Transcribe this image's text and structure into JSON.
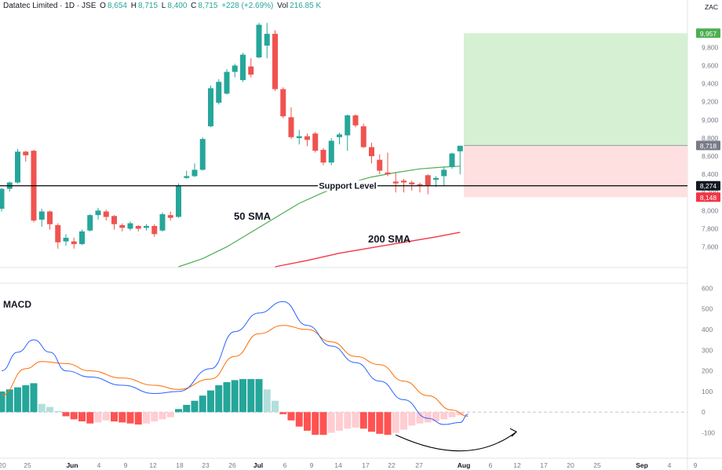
{
  "header": {
    "symbol": "Datatec Limited · 1D · JSE",
    "open_label": "O",
    "open": "8,654",
    "high_label": "H",
    "high": "8,715",
    "low_label": "L",
    "low": "8,400",
    "close_label": "C",
    "close": "8,715",
    "change": "+228 (+2.69%)",
    "vol_label": "Vol",
    "vol": "216.85 K"
  },
  "currency": "ZAC",
  "colors": {
    "up": "#26a69a",
    "down": "#ef5350",
    "sma50": "#4caf50",
    "sma200": "#f23645",
    "macd": "#2962ff",
    "signal": "#ff6d00",
    "hist_up_strong": "#26a69a",
    "hist_up_weak": "#b2dfdb",
    "hist_down_strong": "#ff5252",
    "hist_down_weak": "#ffcdd2",
    "target_zone": "#d6f0d4",
    "stop_zone": "#fde0df",
    "support": "#000000"
  },
  "price_axis": {
    "ticks": [
      "9,800",
      "9,600",
      "9,400",
      "9,200",
      "9,000",
      "8,800",
      "8,600",
      "8,400",
      "8,200",
      "8,000",
      "7,800",
      "7,600"
    ],
    "tags": [
      {
        "label": "9,957",
        "value": 9957,
        "color": "#4caf50"
      },
      {
        "label": "8,718",
        "value": 8718,
        "color": "#787b86"
      },
      {
        "label": "8,274",
        "value": 8274,
        "color": "#131722"
      },
      {
        "label": "8,148",
        "value": 8148,
        "color": "#f23645"
      }
    ]
  },
  "macd_axis": {
    "ticks": [
      "600",
      "500",
      "400",
      "300",
      "200",
      "100",
      "0",
      "-100"
    ]
  },
  "time_axis": {
    "labels": [
      "20",
      "25",
      "Jun",
      "4",
      "9",
      "12",
      "18",
      "23",
      "26",
      "Jul",
      "6",
      "9",
      "14",
      "17",
      "22",
      "27",
      "Aug",
      "6",
      "12",
      "17",
      "20",
      "25",
      "Sep",
      "4",
      "9"
    ]
  },
  "annotations": {
    "support": "Support Level",
    "sma50": "50 SMA",
    "sma200": "200 SMA",
    "macd": "MACD"
  },
  "levels": {
    "support": 8274,
    "target": 9957,
    "entry": 8718,
    "stop": 8148
  },
  "chart_data": {
    "type": "candlestick",
    "title": "Datatec Limited · 1D · JSE",
    "ylim": [
      7380,
      10150
    ],
    "candles": [
      {
        "o": 8020,
        "h": 8250,
        "l": 7990,
        "c": 8240
      },
      {
        "o": 8240,
        "h": 8320,
        "l": 8210,
        "c": 8310
      },
      {
        "o": 8310,
        "h": 8680,
        "l": 8300,
        "c": 8650
      },
      {
        "o": 8650,
        "h": 8660,
        "l": 8540,
        "c": 8610
      },
      {
        "o": 8660,
        "h": 8670,
        "l": 7870,
        "c": 7890
      },
      {
        "o": 7900,
        "h": 8020,
        "l": 7820,
        "c": 7990
      },
      {
        "o": 7990,
        "h": 8000,
        "l": 7790,
        "c": 7850
      },
      {
        "o": 7840,
        "h": 7860,
        "l": 7580,
        "c": 7650
      },
      {
        "o": 7660,
        "h": 7740,
        "l": 7610,
        "c": 7700
      },
      {
        "o": 7660,
        "h": 7700,
        "l": 7580,
        "c": 7630
      },
      {
        "o": 7630,
        "h": 7790,
        "l": 7620,
        "c": 7770
      },
      {
        "o": 7780,
        "h": 7960,
        "l": 7770,
        "c": 7950
      },
      {
        "o": 7950,
        "h": 8030,
        "l": 7900,
        "c": 8000
      },
      {
        "o": 7990,
        "h": 8010,
        "l": 7890,
        "c": 7930
      },
      {
        "o": 7940,
        "h": 7950,
        "l": 7790,
        "c": 7850
      },
      {
        "o": 7840,
        "h": 7860,
        "l": 7770,
        "c": 7810
      },
      {
        "o": 7800,
        "h": 7880,
        "l": 7780,
        "c": 7860
      },
      {
        "o": 7830,
        "h": 7840,
        "l": 7770,
        "c": 7800
      },
      {
        "o": 7810,
        "h": 7850,
        "l": 7780,
        "c": 7830
      },
      {
        "o": 7830,
        "h": 7850,
        "l": 7710,
        "c": 7740
      },
      {
        "o": 7780,
        "h": 7980,
        "l": 7770,
        "c": 7960
      },
      {
        "o": 7950,
        "h": 7990,
        "l": 7890,
        "c": 7920
      },
      {
        "o": 7930,
        "h": 8300,
        "l": 7920,
        "c": 8270
      },
      {
        "o": 8360,
        "h": 8440,
        "l": 8350,
        "c": 8380
      },
      {
        "o": 8380,
        "h": 8520,
        "l": 8370,
        "c": 8450
      },
      {
        "o": 8450,
        "h": 8810,
        "l": 8440,
        "c": 8790
      },
      {
        "o": 8930,
        "h": 9380,
        "l": 8920,
        "c": 9350
      },
      {
        "o": 9190,
        "h": 9450,
        "l": 9170,
        "c": 9420
      },
      {
        "o": 9290,
        "h": 9560,
        "l": 9280,
        "c": 9530
      },
      {
        "o": 9530,
        "h": 9620,
        "l": 9470,
        "c": 9600
      },
      {
        "o": 9440,
        "h": 9740,
        "l": 9420,
        "c": 9720
      },
      {
        "o": 9590,
        "h": 9680,
        "l": 9470,
        "c": 9500
      },
      {
        "o": 9690,
        "h": 10070,
        "l": 9680,
        "c": 10050
      },
      {
        "o": 9820,
        "h": 10070,
        "l": 9680,
        "c": 9950
      },
      {
        "o": 9950,
        "h": 9990,
        "l": 9320,
        "c": 9340
      },
      {
        "o": 9340,
        "h": 9360,
        "l": 9020,
        "c": 9040
      },
      {
        "o": 9030,
        "h": 9140,
        "l": 8790,
        "c": 8810
      },
      {
        "o": 8800,
        "h": 8890,
        "l": 8730,
        "c": 8820
      },
      {
        "o": 8820,
        "h": 8850,
        "l": 8710,
        "c": 8780
      },
      {
        "o": 8850,
        "h": 8870,
        "l": 8640,
        "c": 8660
      },
      {
        "o": 8670,
        "h": 8690,
        "l": 8500,
        "c": 8530
      },
      {
        "o": 8530,
        "h": 8800,
        "l": 8500,
        "c": 8770
      },
      {
        "o": 8810,
        "h": 8860,
        "l": 8730,
        "c": 8840
      },
      {
        "o": 8830,
        "h": 9060,
        "l": 8660,
        "c": 9050
      },
      {
        "o": 9050,
        "h": 9060,
        "l": 8920,
        "c": 8940
      },
      {
        "o": 8930,
        "h": 8960,
        "l": 8690,
        "c": 8700
      },
      {
        "o": 8700,
        "h": 8750,
        "l": 8520,
        "c": 8600
      },
      {
        "o": 8560,
        "h": 8620,
        "l": 8400,
        "c": 8440
      },
      {
        "o": 8420,
        "h": 8640,
        "l": 8380,
        "c": 8400
      },
      {
        "o": 8320,
        "h": 8420,
        "l": 8200,
        "c": 8300
      },
      {
        "o": 8330,
        "h": 8350,
        "l": 8200,
        "c": 8310
      },
      {
        "o": 8310,
        "h": 8330,
        "l": 8220,
        "c": 8290
      },
      {
        "o": 8290,
        "h": 8310,
        "l": 8200,
        "c": 8280
      },
      {
        "o": 8390,
        "h": 8400,
        "l": 8180,
        "c": 8280
      },
      {
        "o": 8340,
        "h": 8380,
        "l": 8260,
        "c": 8360
      },
      {
        "o": 8380,
        "h": 8480,
        "l": 8270,
        "c": 8450
      },
      {
        "o": 8480,
        "h": 8640,
        "l": 8460,
        "c": 8630
      },
      {
        "o": 8654,
        "h": 8715,
        "l": 8400,
        "c": 8715
      }
    ],
    "sma50": [
      {
        "x": 22,
        "y": 7380
      },
      {
        "x": 25,
        "y": 7470
      },
      {
        "x": 28,
        "y": 7600
      },
      {
        "x": 31,
        "y": 7760
      },
      {
        "x": 34,
        "y": 7920
      },
      {
        "x": 37,
        "y": 8080
      },
      {
        "x": 40,
        "y": 8200
      },
      {
        "x": 43,
        "y": 8300
      },
      {
        "x": 46,
        "y": 8370
      },
      {
        "x": 49,
        "y": 8420
      },
      {
        "x": 52,
        "y": 8460
      },
      {
        "x": 55,
        "y": 8480
      },
      {
        "x": 57,
        "y": 8490
      }
    ],
    "sma200": [
      {
        "x": 34,
        "y": 7380
      },
      {
        "x": 38,
        "y": 7450
      },
      {
        "x": 42,
        "y": 7530
      },
      {
        "x": 46,
        "y": 7590
      },
      {
        "x": 50,
        "y": 7650
      },
      {
        "x": 54,
        "y": 7710
      },
      {
        "x": 57,
        "y": 7760
      }
    ],
    "macd_ylim": [
      -170,
      620
    ],
    "macd": [
      {
        "x": 0,
        "y": 200
      },
      {
        "x": 2,
        "y": 290
      },
      {
        "x": 4,
        "y": 350
      },
      {
        "x": 6,
        "y": 290
      },
      {
        "x": 8,
        "y": 200
      },
      {
        "x": 11,
        "y": 170
      },
      {
        "x": 15,
        "y": 130
      },
      {
        "x": 19,
        "y": 90
      },
      {
        "x": 22,
        "y": 100
      },
      {
        "x": 26,
        "y": 210
      },
      {
        "x": 29,
        "y": 390
      },
      {
        "x": 32,
        "y": 480
      },
      {
        "x": 35,
        "y": 535
      },
      {
        "x": 38,
        "y": 420
      },
      {
        "x": 41,
        "y": 320
      },
      {
        "x": 44,
        "y": 240
      },
      {
        "x": 47,
        "y": 150
      },
      {
        "x": 50,
        "y": 60
      },
      {
        "x": 53,
        "y": -30
      },
      {
        "x": 55,
        "y": -60
      },
      {
        "x": 57,
        "y": -50
      },
      {
        "x": 58,
        "y": -10
      }
    ],
    "signal": [
      {
        "x": 0,
        "y": 80
      },
      {
        "x": 3,
        "y": 210
      },
      {
        "x": 5,
        "y": 245
      },
      {
        "x": 8,
        "y": 235
      },
      {
        "x": 11,
        "y": 200
      },
      {
        "x": 15,
        "y": 165
      },
      {
        "x": 19,
        "y": 130
      },
      {
        "x": 22,
        "y": 110
      },
      {
        "x": 26,
        "y": 160
      },
      {
        "x": 29,
        "y": 270
      },
      {
        "x": 32,
        "y": 380
      },
      {
        "x": 35,
        "y": 420
      },
      {
        "x": 38,
        "y": 400
      },
      {
        "x": 41,
        "y": 340
      },
      {
        "x": 44,
        "y": 270
      },
      {
        "x": 47,
        "y": 230
      },
      {
        "x": 50,
        "y": 150
      },
      {
        "x": 53,
        "y": 80
      },
      {
        "x": 56,
        "y": 10
      },
      {
        "x": 58,
        "y": -20
      }
    ],
    "histogram": [
      100,
      110,
      120,
      130,
      140,
      40,
      25,
      5,
      -20,
      -35,
      -45,
      -55,
      -50,
      -40,
      -45,
      -50,
      -55,
      -60,
      -55,
      -45,
      -35,
      -25,
      15,
      35,
      55,
      80,
      105,
      130,
      145,
      155,
      160,
      160,
      160,
      110,
      55,
      -10,
      -40,
      -70,
      -90,
      -110,
      -110,
      -100,
      -90,
      -80,
      -75,
      -80,
      -95,
      -105,
      -110,
      -100,
      -85,
      -65,
      -55,
      -50,
      -45,
      -35,
      -25,
      -15
    ],
    "macd_arrow": [
      {
        "x": 49,
        "y": -110
      },
      {
        "x": 58,
        "y": -45
      },
      {
        "x": 64,
        "y": -95
      }
    ]
  }
}
